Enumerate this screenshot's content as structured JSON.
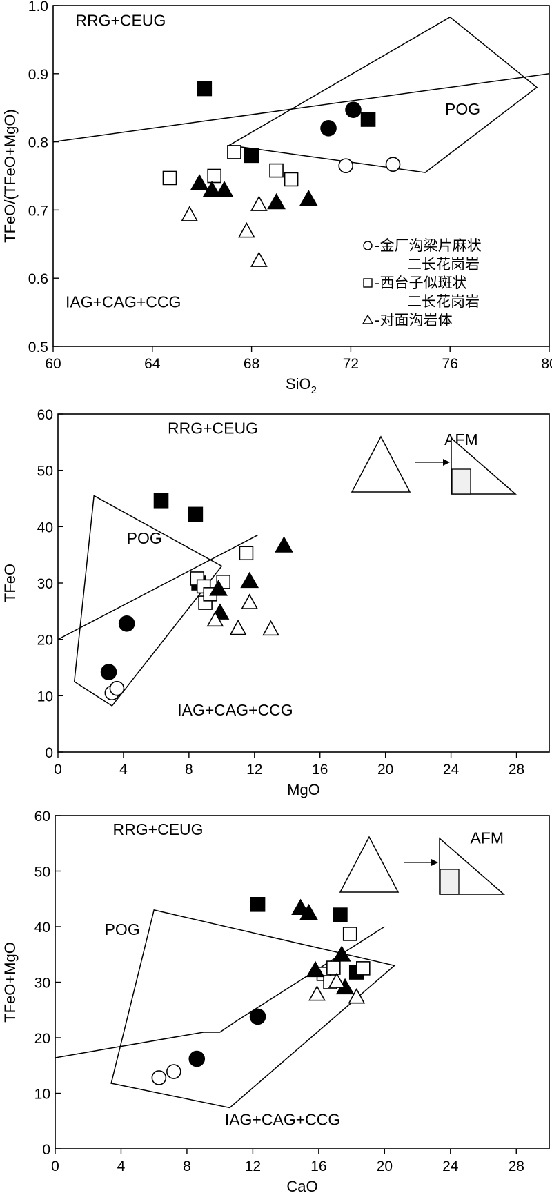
{
  "chart_data": [
    {
      "type": "scatter",
      "xlabel": "SiO",
      "xlabel_sub": "2",
      "ylabel": "TFeO/(TFeO+MgO)",
      "xlim": [
        60,
        80
      ],
      "ylim": [
        0.5,
        1.0
      ],
      "xticks": [
        "60",
        "64",
        "68",
        "72",
        "76",
        "80"
      ],
      "yticks": [
        "0.5",
        "0.6",
        "0.7",
        "0.8",
        "0.9",
        "1.0"
      ],
      "regions": [
        {
          "label": "RRG+CEUG",
          "x": 60.9,
          "y": 0.97
        },
        {
          "label": "POG",
          "x": 75.8,
          "y": 0.84
        },
        {
          "label": "IAG+CAG+CCG",
          "x": 60.5,
          "y": 0.557
        }
      ],
      "boundary_line": [
        [
          60,
          0.8
        ],
        [
          80,
          0.9
        ]
      ],
      "polygon": [
        [
          67.1,
          0.795
        ],
        [
          76.0,
          0.983
        ],
        [
          79.5,
          0.88
        ],
        [
          75.0,
          0.755
        ]
      ],
      "legend": {
        "entries": [
          {
            "marker": "circle",
            "lines": [
              "-金厂沟梁片麻状",
              "二长花岗岩"
            ]
          },
          {
            "marker": "square",
            "lines": [
              "-西台子似斑状",
              "二长花岗岩"
            ]
          },
          {
            "marker": "triangle",
            "lines": [
              "-对面沟岩体"
            ]
          }
        ]
      },
      "series": [
        {
          "marker": "circle",
          "filled": true,
          "points": [
            [
              71.1,
              0.82
            ],
            [
              72.1,
              0.847
            ]
          ]
        },
        {
          "marker": "circle",
          "filled": false,
          "points": [
            [
              71.8,
              0.765
            ],
            [
              73.7,
              0.767
            ]
          ]
        },
        {
          "marker": "square",
          "filled": true,
          "points": [
            [
              66.1,
              0.878
            ],
            [
              68.0,
              0.78
            ],
            [
              72.7,
              0.833
            ]
          ]
        },
        {
          "marker": "square",
          "filled": false,
          "points": [
            [
              64.7,
              0.747
            ],
            [
              66.5,
              0.75
            ],
            [
              67.3,
              0.785
            ],
            [
              69.0,
              0.758
            ],
            [
              69.6,
              0.745
            ]
          ]
        },
        {
          "marker": "triangle",
          "filled": true,
          "points": [
            [
              65.9,
              0.738
            ],
            [
              66.4,
              0.728
            ],
            [
              66.9,
              0.728
            ],
            [
              69.0,
              0.71
            ],
            [
              70.3,
              0.715
            ]
          ]
        },
        {
          "marker": "triangle",
          "filled": false,
          "points": [
            [
              65.5,
              0.692
            ],
            [
              67.8,
              0.668
            ],
            [
              68.3,
              0.707
            ],
            [
              68.3,
              0.625
            ]
          ]
        }
      ]
    },
    {
      "type": "scatter",
      "xlabel": "MgO",
      "ylabel": "TFeO",
      "xlim": [
        0,
        30
      ],
      "ylim": [
        0,
        60
      ],
      "xticks": [
        "0",
        "4",
        "8",
        "12",
        "16",
        "20",
        "24",
        "28"
      ],
      "yticks": [
        "0",
        "10",
        "20",
        "30",
        "40",
        "50",
        "60"
      ],
      "regions": [
        {
          "label": "RRG+CEUG",
          "x": 6.7,
          "y": 56.5
        },
        {
          "label": "POG",
          "x": 4.2,
          "y": 37
        },
        {
          "label": "IAG+CAG+CCG",
          "x": 7.3,
          "y": 6.5
        },
        {
          "label": "AFM",
          "x": 23.6,
          "y": 54.5
        }
      ],
      "boundary_line": [
        [
          0,
          20
        ],
        [
          12.2,
          38.5
        ]
      ],
      "polygon": [
        [
          2.2,
          45.5
        ],
        [
          10.0,
          33.0
        ],
        [
          3.3,
          8.2
        ],
        [
          1.0,
          12.5
        ]
      ],
      "series": [
        {
          "marker": "circle",
          "filled": true,
          "points": [
            [
              3.1,
              14.2
            ],
            [
              4.2,
              22.8
            ]
          ]
        },
        {
          "marker": "circle",
          "filled": false,
          "points": [
            [
              3.3,
              10.5
            ],
            [
              3.6,
              11.3
            ]
          ]
        },
        {
          "marker": "square",
          "filled": true,
          "points": [
            [
              6.3,
              44.6
            ],
            [
              8.4,
              42.2
            ],
            [
              8.6,
              30.0
            ]
          ]
        },
        {
          "marker": "square",
          "filled": false,
          "points": [
            [
              8.5,
              30.8
            ],
            [
              8.9,
              29.4
            ],
            [
              9.0,
              26.5
            ],
            [
              9.3,
              28.0
            ],
            [
              10.1,
              30.2
            ],
            [
              11.5,
              35.3
            ]
          ]
        },
        {
          "marker": "triangle",
          "filled": true,
          "points": [
            [
              9.8,
              28.8
            ],
            [
              9.9,
              24.6
            ],
            [
              11.7,
              30.2
            ],
            [
              13.8,
              36.5
            ]
          ]
        },
        {
          "marker": "triangle",
          "filled": false,
          "points": [
            [
              9.6,
              23.3
            ],
            [
              11.0,
              21.8
            ],
            [
              11.7,
              26.4
            ],
            [
              13.0,
              21.7
            ]
          ]
        }
      ]
    },
    {
      "type": "scatter",
      "xlabel": "CaO",
      "ylabel": "TFeO+MgO",
      "xlim": [
        0,
        30
      ],
      "ylim": [
        0,
        60
      ],
      "xticks": [
        "0",
        "4",
        "8",
        "12",
        "16",
        "20",
        "24",
        "28"
      ],
      "yticks": [
        "0",
        "10",
        "20",
        "30",
        "40",
        "50",
        "60"
      ],
      "regions": [
        {
          "label": "RRG+CEUG",
          "x": 3.5,
          "y": 56.5
        },
        {
          "label": "POG",
          "x": 3.0,
          "y": 38.5
        },
        {
          "label": "IAG+CAG+CCG",
          "x": 10.3,
          "y": 4.3
        },
        {
          "label": "AFM",
          "x": 25.2,
          "y": 55
        }
      ],
      "boundary_line": [
        [
          0,
          16.4
        ],
        [
          9.0,
          21.0
        ],
        [
          10.0,
          21.0
        ],
        [
          11.0,
          23.0
        ],
        [
          20.0,
          40.0
        ]
      ],
      "polygon": [
        [
          6.0,
          43.0
        ],
        [
          20.6,
          33.0
        ],
        [
          10.6,
          7.4
        ],
        [
          3.4,
          11.8
        ]
      ],
      "series": [
        {
          "marker": "circle",
          "filled": true,
          "points": [
            [
              8.6,
              16.2
            ],
            [
              12.3,
              23.8
            ]
          ]
        },
        {
          "marker": "circle",
          "filled": false,
          "points": [
            [
              6.3,
              12.8
            ],
            [
              7.2,
              13.9
            ]
          ]
        },
        {
          "marker": "square",
          "filled": true,
          "points": [
            [
              12.3,
              44.0
            ],
            [
              17.3,
              42.1
            ],
            [
              18.3,
              31.8
            ]
          ]
        },
        {
          "marker": "square",
          "filled": false,
          "points": [
            [
              16.3,
              31.5
            ],
            [
              16.7,
              30.0
            ],
            [
              16.9,
              32.6
            ],
            [
              17.9,
              38.7
            ],
            [
              18.7,
              32.5
            ]
          ]
        },
        {
          "marker": "triangle",
          "filled": true,
          "points": [
            [
              14.9,
              43.2
            ],
            [
              15.4,
              42.3
            ],
            [
              15.8,
              32.0
            ],
            [
              17.4,
              34.8
            ],
            [
              17.6,
              28.9
            ]
          ]
        },
        {
          "marker": "triangle",
          "filled": false,
          "points": [
            [
              15.9,
              27.7
            ],
            [
              17.1,
              30.0
            ],
            [
              18.3,
              27.2
            ]
          ]
        }
      ]
    }
  ]
}
